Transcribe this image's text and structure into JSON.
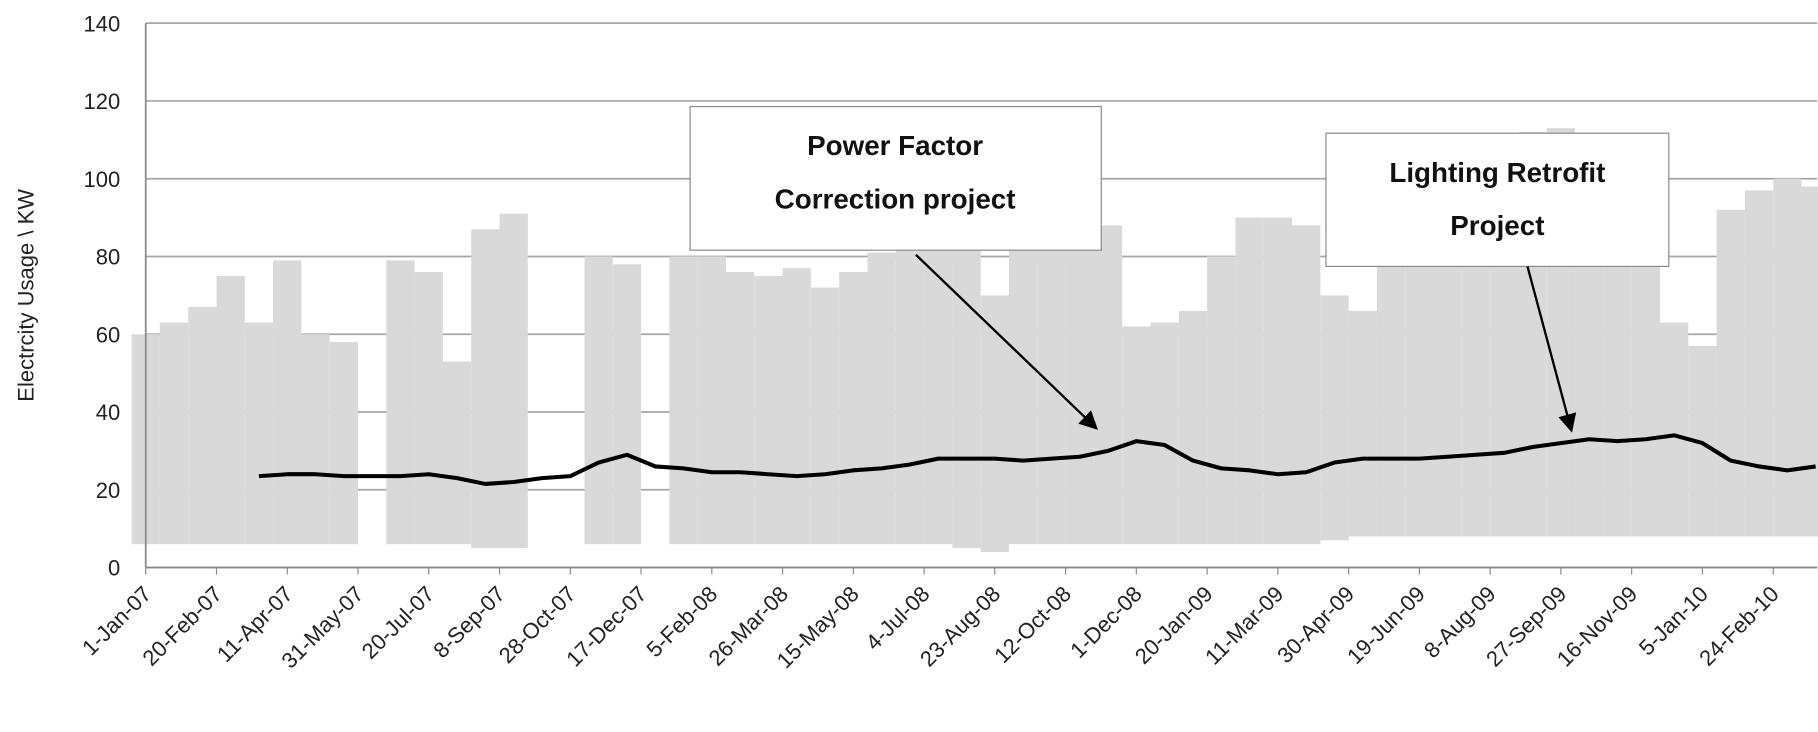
{
  "chart_data": {
    "type": "line",
    "ylabel": "Electrcity Usage \\ KW",
    "x": [
      "1-Jan-07",
      "21-Jan-07",
      "10-Feb-07",
      "2-Mar-07",
      "22-Mar-07",
      "11-Apr-07",
      "1-May-07",
      "21-May-07",
      "10-Jun-07",
      "30-Jun-07",
      "20-Jul-07",
      "9-Aug-07",
      "29-Aug-07",
      "18-Sep-07",
      "8-Oct-07",
      "28-Oct-07",
      "17-Nov-07",
      "7-Dec-07",
      "27-Dec-07",
      "16-Jan-08",
      "5-Feb-08",
      "25-Feb-08",
      "16-Mar-08",
      "5-Apr-08",
      "25-Apr-08",
      "15-May-08",
      "4-Jun-08",
      "24-Jun-08",
      "14-Jul-08",
      "3-Aug-08",
      "23-Aug-08",
      "12-Sep-08",
      "2-Oct-08",
      "22-Oct-08",
      "11-Nov-08",
      "1-Dec-08",
      "21-Dec-08",
      "10-Jan-09",
      "30-Jan-09",
      "19-Feb-09",
      "11-Mar-09",
      "31-Mar-09",
      "20-Apr-09",
      "10-May-09",
      "30-May-09",
      "19-Jun-09",
      "9-Jul-09",
      "29-Jul-09",
      "18-Aug-09",
      "7-Sep-09",
      "27-Sep-09",
      "17-Oct-09",
      "6-Nov-09",
      "26-Nov-09",
      "16-Dec-09",
      "5-Jan-10",
      "25-Jan-10",
      "14-Feb-10",
      "6-Mar-10",
      "26-Mar-10"
    ],
    "series": [
      {
        "color": "#d9d9d9",
        "values": [
          60,
          63,
          67,
          75,
          63,
          79,
          60,
          58,
          null,
          79,
          76,
          53,
          87,
          91,
          null,
          null,
          80,
          78,
          null,
          80,
          80,
          76,
          75,
          77,
          72,
          76,
          81,
          90,
          88,
          86,
          70,
          108,
          100,
          101,
          88,
          62,
          63,
          66,
          80,
          90,
          90,
          88,
          70,
          66,
          80,
          97,
          100,
          98,
          100,
          112,
          113,
          102,
          102,
          100,
          63,
          57,
          92,
          97,
          100,
          98
        ],
        "low": [
          6,
          6,
          6,
          6,
          6,
          6,
          6,
          6,
          null,
          6,
          6,
          6,
          5,
          5,
          null,
          null,
          6,
          6,
          null,
          6,
          6,
          6,
          6,
          6,
          6,
          6,
          6,
          6,
          6,
          5,
          4,
          6,
          6,
          6,
          6,
          6,
          6,
          6,
          6,
          6,
          6,
          6,
          7,
          8,
          8,
          8,
          8,
          8,
          8,
          8,
          8,
          8,
          8,
          8,
          8,
          8,
          8,
          8,
          8,
          8
        ]
      },
      {
        "color": "#000000",
        "values": [
          null,
          null,
          null,
          null,
          23.5,
          24,
          24,
          23.5,
          23.5,
          23.5,
          24,
          23,
          21.5,
          22,
          23,
          23.5,
          27,
          29,
          26,
          25.5,
          24.5,
          24.5,
          24,
          23.5,
          24,
          25,
          25.5,
          26.5,
          28,
          28,
          28,
          27.5,
          28,
          28.5,
          30,
          32.5,
          31.5,
          27.5,
          25.5,
          25,
          24,
          24.5,
          27,
          28,
          28,
          28,
          28.5,
          29,
          29.5,
          31,
          32,
          33,
          32.5,
          33,
          34,
          32,
          27.5,
          26,
          25,
          26
        ]
      }
    ],
    "annotations": [
      {
        "lines": [
          "Power Factor",
          "Correction project"
        ]
      },
      {
        "lines": [
          "Lighting Retrofit",
          "Project"
        ]
      }
    ],
    "xlim": [
      "1-Jan-07",
      "27-Mar-10"
    ],
    "xticks": [
      "1-Jan-07",
      "20-Feb-07",
      "11-Apr-07",
      "31-May-07",
      "20-Jul-07",
      "8-Sep-07",
      "28-Oct-07",
      "17-Dec-07",
      "5-Feb-08",
      "26-Mar-08",
      "15-May-08",
      "4-Jul-08",
      "23-Aug-08",
      "12-Oct-08",
      "1-Dec-08",
      "20-Jan-09",
      "11-Mar-09",
      "30-Apr-09",
      "19-Jun-09",
      "8-Aug-09",
      "27-Sep-09",
      "16-Nov-09",
      "5-Jan-10",
      "24-Feb-10"
    ],
    "ylim": [
      0,
      140
    ],
    "yticks": [
      0,
      20,
      40,
      60,
      80,
      100,
      120,
      140
    ],
    "grid": true
  }
}
